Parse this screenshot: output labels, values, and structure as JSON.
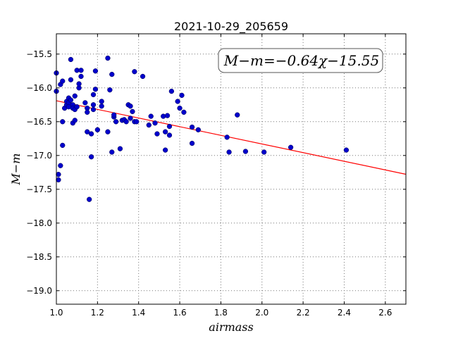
{
  "chart_data": {
    "type": "scatter",
    "title": "2021-10-29_205659",
    "xlabel": "airmass",
    "ylabel": "M−m",
    "xlim": [
      1.0,
      2.7
    ],
    "ylim": [
      -19.2,
      -15.2
    ],
    "xticks": [
      1.0,
      1.2,
      1.4,
      1.6,
      1.8,
      2.0,
      2.2,
      2.4,
      2.6
    ],
    "xtick_labels": [
      "1.0",
      "1.2",
      "1.4",
      "1.6",
      "1.8",
      "2.0",
      "2.2",
      "2.4",
      "2.6"
    ],
    "yticks": [
      -15.5,
      -16.0,
      -16.5,
      -17.0,
      -17.5,
      -18.0,
      -18.5,
      -19.0
    ],
    "ytick_labels": [
      "−15.5",
      "−16.0",
      "−16.5",
      "−17.0",
      "−17.5",
      "−18.0",
      "−18.5",
      "−19.0"
    ],
    "grid": true,
    "annotation": "M−m=−0.64χ−15.55",
    "annotation_position": "top-right",
    "fit": {
      "slope": -0.64,
      "intercept": -15.55,
      "color": "#ff0000"
    },
    "point_color": "#0000cc",
    "points": [
      [
        1.0,
        -15.78
      ],
      [
        1.0,
        -16.05
      ],
      [
        1.01,
        -17.28
      ],
      [
        1.01,
        -17.36
      ],
      [
        1.02,
        -17.15
      ],
      [
        1.02,
        -15.95
      ],
      [
        1.03,
        -15.9
      ],
      [
        1.03,
        -16.5
      ],
      [
        1.03,
        -16.85
      ],
      [
        1.04,
        -16.3
      ],
      [
        1.05,
        -16.25
      ],
      [
        1.05,
        -16.2
      ],
      [
        1.06,
        -16.15
      ],
      [
        1.06,
        -16.22
      ],
      [
        1.06,
        -16.28
      ],
      [
        1.07,
        -15.58
      ],
      [
        1.07,
        -15.88
      ],
      [
        1.07,
        -16.18
      ],
      [
        1.08,
        -16.25
      ],
      [
        1.08,
        -16.3
      ],
      [
        1.08,
        -16.52
      ],
      [
        1.09,
        -16.12
      ],
      [
        1.09,
        -16.32
      ],
      [
        1.09,
        -16.48
      ],
      [
        1.1,
        -16.28
      ],
      [
        1.1,
        -15.74
      ],
      [
        1.11,
        -16.0
      ],
      [
        1.11,
        -15.94
      ],
      [
        1.12,
        -15.83
      ],
      [
        1.12,
        -15.74
      ],
      [
        1.14,
        -16.22
      ],
      [
        1.15,
        -16.65
      ],
      [
        1.15,
        -16.3
      ],
      [
        1.15,
        -16.36
      ],
      [
        1.16,
        -17.65
      ],
      [
        1.17,
        -16.68
      ],
      [
        1.17,
        -17.02
      ],
      [
        1.18,
        -16.1
      ],
      [
        1.18,
        -16.25
      ],
      [
        1.18,
        -16.32
      ],
      [
        1.19,
        -15.75
      ],
      [
        1.19,
        -16.02
      ],
      [
        1.2,
        -16.62
      ],
      [
        1.22,
        -16.2
      ],
      [
        1.22,
        -16.27
      ],
      [
        1.25,
        -15.56
      ],
      [
        1.25,
        -16.65
      ],
      [
        1.26,
        -16.03
      ],
      [
        1.27,
        -16.95
      ],
      [
        1.27,
        -15.8
      ],
      [
        1.28,
        -16.43
      ],
      [
        1.28,
        -16.4
      ],
      [
        1.29,
        -16.5
      ],
      [
        1.31,
        -16.9
      ],
      [
        1.32,
        -16.48
      ],
      [
        1.33,
        -16.47
      ],
      [
        1.34,
        -16.5
      ],
      [
        1.35,
        -16.25
      ],
      [
        1.36,
        -16.27
      ],
      [
        1.36,
        -16.45
      ],
      [
        1.37,
        -16.35
      ],
      [
        1.38,
        -15.76
      ],
      [
        1.38,
        -16.5
      ],
      [
        1.39,
        -16.5
      ],
      [
        1.42,
        -15.83
      ],
      [
        1.45,
        -16.55
      ],
      [
        1.46,
        -16.42
      ],
      [
        1.48,
        -16.52
      ],
      [
        1.49,
        -16.68
      ],
      [
        1.52,
        -16.42
      ],
      [
        1.53,
        -16.92
      ],
      [
        1.53,
        -16.65
      ],
      [
        1.54,
        -16.41
      ],
      [
        1.55,
        -16.7
      ],
      [
        1.55,
        -16.57
      ],
      [
        1.56,
        -16.05
      ],
      [
        1.59,
        -16.2
      ],
      [
        1.6,
        -16.3
      ],
      [
        1.61,
        -16.11
      ],
      [
        1.62,
        -16.36
      ],
      [
        1.66,
        -16.58
      ],
      [
        1.66,
        -16.82
      ],
      [
        1.69,
        -16.62
      ],
      [
        1.83,
        -16.73
      ],
      [
        1.84,
        -16.95
      ],
      [
        1.88,
        -16.4
      ],
      [
        1.92,
        -16.94
      ],
      [
        2.01,
        -16.95
      ],
      [
        2.14,
        -16.88
      ],
      [
        2.41,
        -16.92
      ]
    ]
  }
}
